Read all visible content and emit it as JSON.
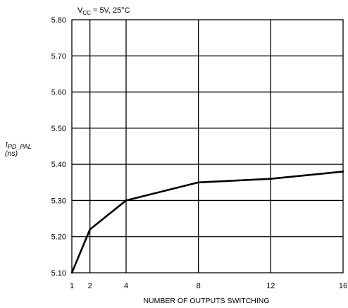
{
  "chart_data": {
    "type": "line",
    "title": "",
    "condition": {
      "vcc_prefix": "V",
      "vcc_subscript": "CC",
      "rest": " = 5V, 25°C"
    },
    "xlabel": "NUMBER OF OUTPUTS SWITCHING",
    "ylabel": {
      "symbol": "t",
      "subscript": "PD_PAL",
      "unit": "(ns)"
    },
    "x_ticks": [
      1,
      2,
      4,
      8,
      12,
      16
    ],
    "y_ticks": [
      "5.10",
      "5.20",
      "5.30",
      "5.40",
      "5.50",
      "5.60",
      "5.70",
      "5.80"
    ],
    "xlim": [
      1,
      16
    ],
    "ylim": [
      5.1,
      5.8
    ],
    "grid": "vertical at x ticks, horizontal at y ticks",
    "series": [
      {
        "x": [
          1,
          2,
          4,
          8,
          12,
          16
        ],
        "y": [
          5.1,
          5.22,
          5.3,
          5.35,
          5.36,
          5.38
        ]
      }
    ]
  }
}
